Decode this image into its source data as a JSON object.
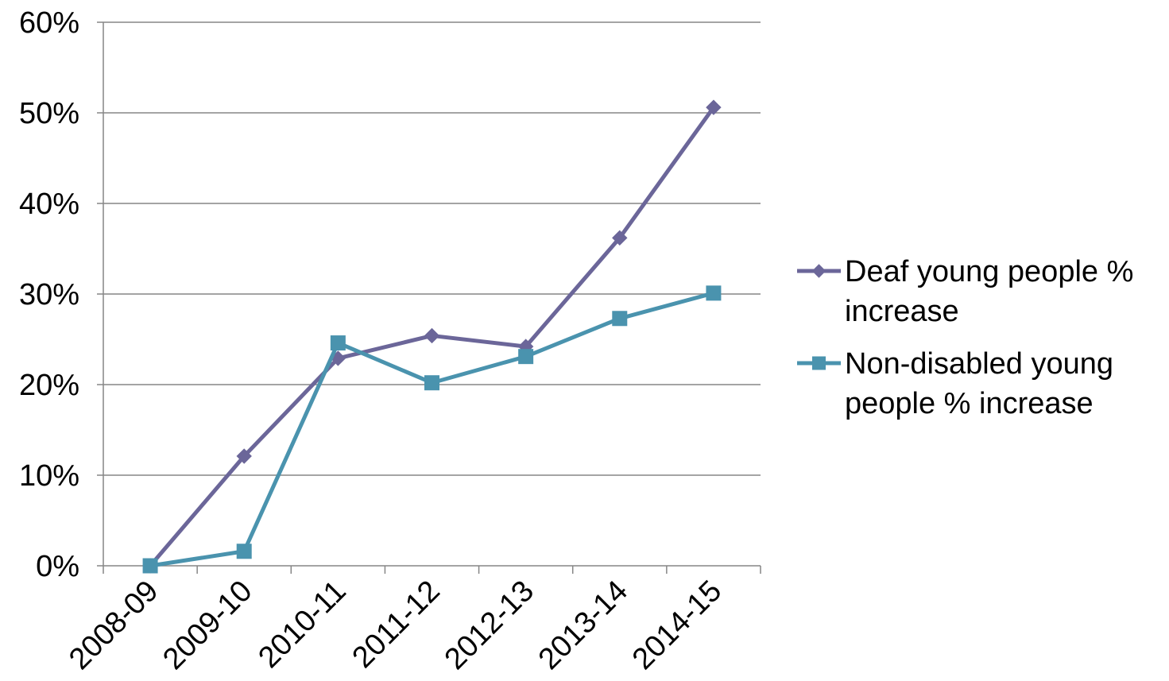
{
  "chart_data": {
    "type": "line",
    "title": "",
    "xlabel": "",
    "ylabel": "",
    "categories": [
      "2008-09",
      "2009-10",
      "2010-11",
      "2011-12",
      "2012-13",
      "2013-14",
      "2014-15"
    ],
    "series": [
      {
        "name": "Deaf young people % increase",
        "legend_lines": [
          "Deaf young people %",
          "increase"
        ],
        "color": "#6B6699",
        "marker": "diamond",
        "values": [
          0.0,
          12.1,
          22.9,
          25.4,
          24.2,
          36.2,
          50.6
        ]
      },
      {
        "name": "Non-disabled young people % increase",
        "legend_lines": [
          "Non-disabled young",
          "people % increase"
        ],
        "color": "#4A93AE",
        "marker": "square",
        "values": [
          0.0,
          1.6,
          24.6,
          20.2,
          23.1,
          27.3,
          30.1
        ]
      }
    ],
    "yticks": [
      "0%",
      "10%",
      "20%",
      "30%",
      "40%",
      "50%",
      "60%"
    ],
    "ytick_values": [
      0,
      10,
      20,
      30,
      40,
      50,
      60
    ],
    "ylim": [
      0,
      60
    ],
    "grid": true,
    "legend_position": "right",
    "gridline_color": "#868686",
    "axis_color": "#868686"
  }
}
